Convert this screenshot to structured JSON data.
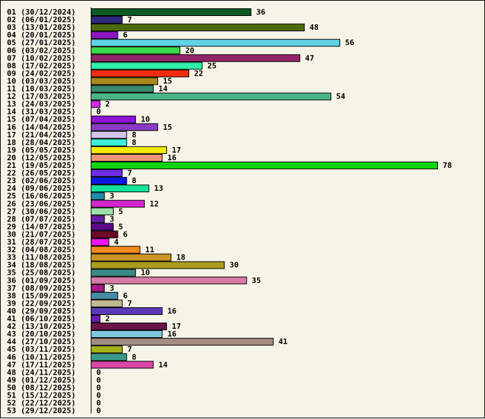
{
  "chart_data": {
    "type": "bar",
    "orientation": "horizontal",
    "title": "",
    "xlabel": "",
    "ylabel": "",
    "xlim": [
      0,
      78
    ],
    "grid": false,
    "categories": [
      "01 (30/12/2024)",
      "02 (06/01/2025)",
      "03 (13/01/2025)",
      "04 (20/01/2025)",
      "05 (27/01/2025)",
      "06 (03/02/2025)",
      "07 (10/02/2025)",
      "08 (17/02/2025)",
      "09 (24/02/2025)",
      "10 (03/03/2025)",
      "11 (10/03/2025)",
      "12 (17/03/2025)",
      "13 (24/03/2025)",
      "14 (31/03/2025)",
      "15 (07/04/2025)",
      "16 (14/04/2025)",
      "17 (21/04/2025)",
      "18 (28/04/2025)",
      "19 (05/05/2025)",
      "20 (12/05/2025)",
      "21 (19/05/2025)",
      "22 (26/05/2025)",
      "23 (02/06/2025)",
      "24 (09/06/2025)",
      "25 (16/06/2025)",
      "26 (23/06/2025)",
      "27 (30/06/2025)",
      "28 (07/07/2025)",
      "29 (14/07/2025)",
      "30 (21/07/2025)",
      "31 (28/07/2025)",
      "32 (04/08/2025)",
      "33 (11/08/2025)",
      "34 (18/08/2025)",
      "35 (25/08/2025)",
      "36 (01/09/2025)",
      "37 (08/09/2025)",
      "38 (15/09/2025)",
      "39 (22/09/2025)",
      "40 (29/09/2025)",
      "41 (06/10/2025)",
      "42 (13/10/2025)",
      "43 (20/10/2025)",
      "44 (27/10/2025)",
      "45 (03/11/2025)",
      "46 (10/11/2025)",
      "47 (17/11/2025)",
      "48 (24/11/2025)",
      "49 (01/12/2025)",
      "50 (08/12/2025)",
      "51 (15/12/2025)",
      "52 (22/12/2025)",
      "53 (29/12/2025)"
    ],
    "values": [
      36,
      7,
      48,
      6,
      56,
      20,
      47,
      25,
      22,
      15,
      14,
      54,
      2,
      0,
      10,
      15,
      8,
      8,
      17,
      16,
      78,
      7,
      8,
      13,
      3,
      12,
      5,
      3,
      5,
      6,
      4,
      11,
      18,
      30,
      10,
      35,
      3,
      6,
      7,
      16,
      2,
      17,
      16,
      41,
      7,
      8,
      14,
      0,
      0,
      0,
      0,
      0,
      0
    ],
    "colors": [
      "#0b5a24",
      "#2e2a7a",
      "#4d6b0c",
      "#8c16c2",
      "#5ed3e6",
      "#3ad94a",
      "#932468",
      "#2ef0a8",
      "#ef2d0c",
      "#aa8a1c",
      "#3a8a6a",
      "#4cb486",
      "#d12be8",
      "#ffffff",
      "#8f12d6",
      "#8b3ac6",
      "#d2c4ec",
      "#3af0da",
      "#f2ea0a",
      "#ec9478",
      "#10d20c",
      "#6c2ee0",
      "#0a18e8",
      "#12e29a",
      "#1c8ca8",
      "#d226cc",
      "#9ee0a8",
      "#6a1aa8",
      "#5a0a8a",
      "#6a0a28",
      "#ec16ea",
      "#f08a1c",
      "#cc9422",
      "#aa9c1a",
      "#3a8a86",
      "#d87aa6",
      "#a8188a",
      "#4a8aa6",
      "#c2b890",
      "#5a3ab8",
      "#6a1ab8",
      "#6a1448",
      "#7ec8de",
      "#a28c84",
      "#a2b41a",
      "#3a9a8a",
      "#d846a6",
      "#ffffff",
      "#ffffff",
      "#ffffff",
      "#ffffff",
      "#ffffff",
      "#ffffff"
    ]
  }
}
